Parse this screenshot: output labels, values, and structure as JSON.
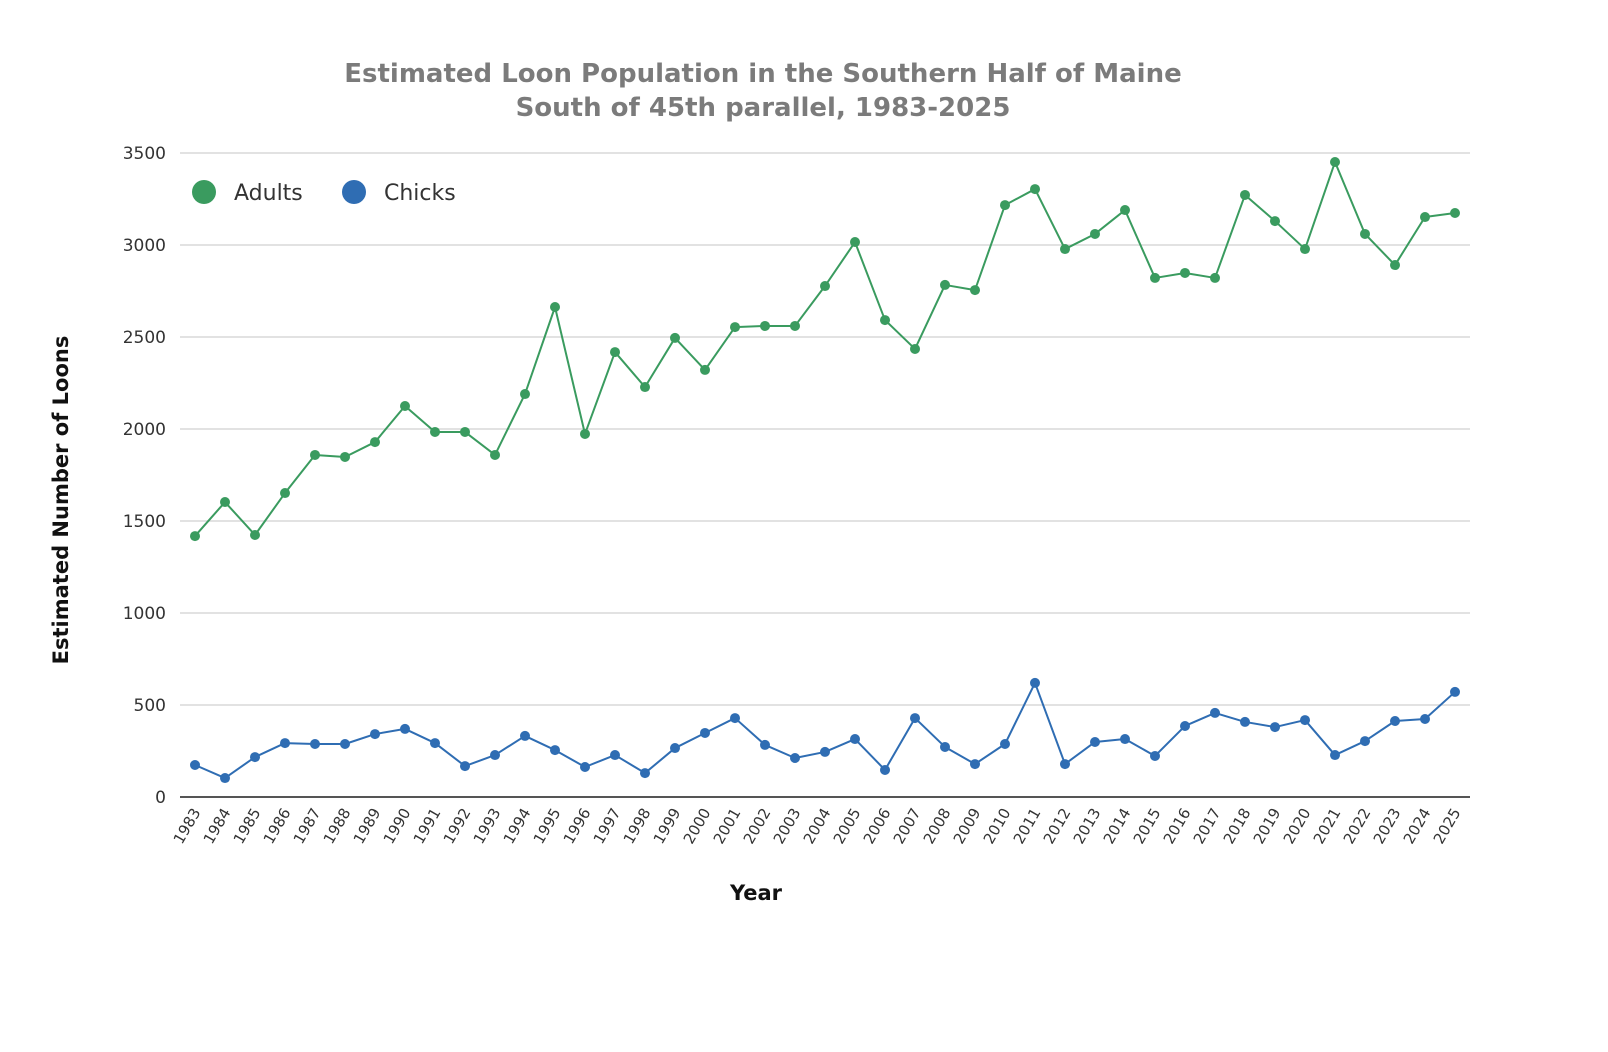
{
  "chart_data": {
    "type": "line",
    "title": "Estimated Loon Population in the Southern Half of Maine",
    "subtitle": "South of 45th parallel, 1983-2025",
    "xlabel": "Year",
    "ylabel": "Estimated Number of Loons",
    "ylim": [
      0,
      3500
    ],
    "yticks": [
      0,
      500,
      1000,
      1500,
      2000,
      2500,
      3000,
      3500
    ],
    "grid": true,
    "legend_position": "top-left",
    "x": [
      "1983",
      "1984",
      "1985",
      "1986",
      "1987",
      "1988",
      "1989",
      "1990",
      "1991",
      "1992",
      "1993",
      "1994",
      "1995",
      "1996",
      "1997",
      "1998",
      "1999",
      "2000",
      "2001",
      "2002",
      "2003",
      "2004",
      "2005",
      "2006",
      "2007",
      "2008",
      "2009",
      "2010",
      "2011",
      "2012",
      "2013",
      "2014",
      "2015",
      "2016",
      "2017",
      "2018",
      "2019",
      "2020",
      "2021",
      "2022",
      "2023",
      "2024",
      "2025"
    ],
    "series": [
      {
        "name": "Adults",
        "color": "#3a9b5f",
        "values": [
          1418,
          1603,
          1424,
          1652,
          1859,
          1848,
          1929,
          2125,
          1984,
          1984,
          1859,
          2190,
          2663,
          1973,
          2418,
          2228,
          2495,
          2321,
          2554,
          2560,
          2560,
          2777,
          3016,
          2592,
          2435,
          2783,
          2755,
          3217,
          3304,
          2978,
          3060,
          3190,
          2821,
          2848,
          2821,
          3272,
          3130,
          2978,
          3451,
          3060,
          2891,
          3152,
          3174
        ]
      },
      {
        "name": "Chicks",
        "color": "#2f6db3",
        "values": [
          174,
          103,
          217,
          293,
          288,
          288,
          342,
          370,
          293,
          168,
          228,
          332,
          255,
          163,
          228,
          130,
          266,
          348,
          429,
          283,
          212,
          245,
          315,
          147,
          429,
          272,
          179,
          288,
          620,
          179,
          299,
          315,
          223,
          386,
          457,
          408,
          380,
          418,
          228,
          304,
          413,
          424,
          571
        ]
      }
    ]
  }
}
